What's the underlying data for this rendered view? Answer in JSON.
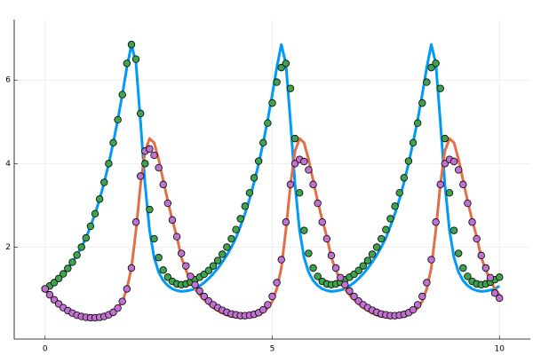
{
  "chart_data": {
    "type": "line",
    "xlim": [
      -0.68,
      10.68
    ],
    "ylim": [
      -0.2,
      7.45
    ],
    "xticks": [
      0,
      5,
      10
    ],
    "yticks": [
      2,
      4,
      6
    ],
    "grid": true,
    "x": [
      0,
      0.1,
      0.2,
      0.3,
      0.4,
      0.5,
      0.6,
      0.7,
      0.8,
      0.9,
      1,
      1.1,
      1.2,
      1.3,
      1.4,
      1.5,
      1.6,
      1.7,
      1.8,
      1.9,
      2,
      2.1,
      2.2,
      2.3,
      2.4,
      2.5,
      2.6,
      2.7,
      2.8,
      2.9,
      3,
      3.1,
      3.2,
      3.3,
      3.4,
      3.5,
      3.6,
      3.7,
      3.8,
      3.9,
      4,
      4.1,
      4.2,
      4.3,
      4.4,
      4.5,
      4.6,
      4.7,
      4.8,
      4.9,
      5,
      5.1,
      5.2,
      5.3,
      5.4,
      5.5,
      5.6,
      5.7,
      5.8,
      5.9,
      6,
      6.1,
      6.2,
      6.3,
      6.4,
      6.5,
      6.6,
      6.7,
      6.8,
      6.9,
      7,
      7.1,
      7.2,
      7.3,
      7.4,
      7.5,
      7.6,
      7.7,
      7.8,
      7.9,
      8,
      8.1,
      8.2,
      8.3,
      8.4,
      8.5,
      8.6,
      8.7,
      8.8,
      8.9,
      9,
      9.1,
      9.2,
      9.3,
      9.4,
      9.5,
      9.6,
      9.7,
      9.8,
      9.9,
      10
    ],
    "series": [
      {
        "kind": "line",
        "color": "#009af9",
        "values": [
          1.0,
          1.07,
          1.15,
          1.25,
          1.36,
          1.49,
          1.64,
          1.81,
          2.0,
          2.22,
          2.5,
          2.8,
          3.15,
          3.55,
          4.0,
          4.5,
          5.05,
          5.65,
          6.3,
          6.85,
          6.4,
          5.0,
          3.5,
          2.4,
          1.75,
          1.4,
          1.2,
          1.08,
          1.0,
          0.96,
          0.94,
          0.95,
          0.97,
          1.0,
          1.07,
          1.15,
          1.25,
          1.36,
          1.49,
          1.64,
          1.81,
          2.0,
          2.22,
          2.5,
          2.8,
          3.15,
          3.55,
          4.0,
          4.5,
          5.05,
          5.65,
          6.3,
          6.85,
          6.4,
          5.0,
          3.5,
          2.4,
          1.75,
          1.4,
          1.2,
          1.08,
          1.0,
          0.96,
          0.94,
          0.95,
          0.97,
          1.0,
          1.07,
          1.15,
          1.25,
          1.36,
          1.49,
          1.64,
          1.81,
          2.0,
          2.22,
          2.5,
          2.8,
          3.15,
          3.55,
          4.0,
          4.5,
          5.05,
          5.65,
          6.3,
          6.85,
          6.4,
          5.0,
          3.5,
          2.4,
          1.75,
          1.4,
          1.2,
          1.08,
          1.0,
          0.96,
          0.94,
          0.95,
          0.97,
          1.0,
          1.07
        ]
      },
      {
        "kind": "line",
        "color": "#e26f46",
        "values": [
          1.0,
          0.86,
          0.74,
          0.64,
          0.55,
          0.48,
          0.42,
          0.37,
          0.34,
          0.32,
          0.31,
          0.31,
          0.32,
          0.34,
          0.38,
          0.44,
          0.54,
          0.7,
          1.0,
          1.5,
          2.4,
          3.5,
          4.3,
          4.6,
          4.5,
          4.1,
          3.6,
          3.1,
          2.65,
          2.25,
          1.75,
          1.45,
          1.2,
          1.0,
          0.86,
          0.74,
          0.64,
          0.55,
          0.48,
          0.42,
          0.37,
          0.34,
          0.32,
          0.31,
          0.31,
          0.32,
          0.34,
          0.38,
          0.44,
          0.54,
          0.7,
          1.0,
          1.5,
          2.4,
          3.5,
          4.3,
          4.6,
          4.5,
          4.1,
          3.6,
          3.1,
          2.65,
          2.25,
          1.75,
          1.45,
          1.2,
          1.0,
          0.86,
          0.74,
          0.64,
          0.55,
          0.48,
          0.42,
          0.37,
          0.34,
          0.32,
          0.31,
          0.31,
          0.32,
          0.34,
          0.38,
          0.44,
          0.54,
          0.7,
          1.0,
          1.5,
          2.4,
          3.5,
          4.3,
          4.6,
          4.5,
          4.1,
          3.6,
          3.1,
          2.65,
          2.25,
          1.75,
          1.45,
          1.2,
          1.0,
          0.86
        ]
      },
      {
        "kind": "scatter",
        "color": "#3da44d",
        "values": [
          1.0,
          1.07,
          1.15,
          1.25,
          1.36,
          1.49,
          1.64,
          1.81,
          2.0,
          2.22,
          2.5,
          2.8,
          3.15,
          3.55,
          4.0,
          4.5,
          5.05,
          5.65,
          6.4,
          6.85,
          6.5,
          5.2,
          4.0,
          2.9,
          2.2,
          1.75,
          1.45,
          1.28,
          1.18,
          1.12,
          1.1,
          1.12,
          1.16,
          1.22,
          1.28,
          1.35,
          1.44,
          1.55,
          1.68,
          1.83,
          2.0,
          2.2,
          2.42,
          2.68,
          2.98,
          3.3,
          3.66,
          4.06,
          4.5,
          4.97,
          5.45,
          5.95,
          6.3,
          6.4,
          5.8,
          4.6,
          3.3,
          2.4,
          1.85,
          1.5,
          1.3,
          1.18,
          1.12,
          1.1,
          1.12,
          1.16,
          1.22,
          1.28,
          1.35,
          1.44,
          1.55,
          1.68,
          1.83,
          2.0,
          2.2,
          2.42,
          2.68,
          2.98,
          3.3,
          3.66,
          4.06,
          4.5,
          4.97,
          5.45,
          5.95,
          6.3,
          6.4,
          5.8,
          4.6,
          3.3,
          2.4,
          1.85,
          1.5,
          1.3,
          1.18,
          1.12,
          1.1,
          1.12,
          1.16,
          1.22,
          1.28
        ]
      },
      {
        "kind": "scatter",
        "color": "#c271d2",
        "values": [
          1.0,
          0.86,
          0.74,
          0.64,
          0.55,
          0.48,
          0.42,
          0.37,
          0.34,
          0.32,
          0.31,
          0.31,
          0.32,
          0.34,
          0.38,
          0.44,
          0.54,
          0.7,
          1.0,
          1.5,
          2.6,
          3.7,
          4.3,
          4.35,
          4.2,
          3.9,
          3.5,
          3.05,
          2.65,
          2.25,
          1.85,
          1.55,
          1.3,
          1.1,
          0.95,
          0.82,
          0.71,
          0.62,
          0.55,
          0.49,
          0.44,
          0.4,
          0.38,
          0.36,
          0.36,
          0.37,
          0.39,
          0.43,
          0.5,
          0.62,
          0.82,
          1.15,
          1.7,
          2.6,
          3.5,
          4.0,
          4.1,
          4.05,
          3.85,
          3.5,
          3.05,
          2.6,
          2.2,
          1.8,
          1.5,
          1.27,
          1.1,
          0.95,
          0.82,
          0.71,
          0.62,
          0.55,
          0.49,
          0.44,
          0.4,
          0.38,
          0.36,
          0.36,
          0.37,
          0.39,
          0.43,
          0.5,
          0.62,
          0.82,
          1.15,
          1.7,
          2.6,
          3.5,
          4.0,
          4.1,
          4.05,
          3.85,
          3.5,
          3.05,
          2.6,
          2.2,
          1.8,
          1.5,
          1.27,
          0.9,
          0.78
        ]
      }
    ]
  }
}
